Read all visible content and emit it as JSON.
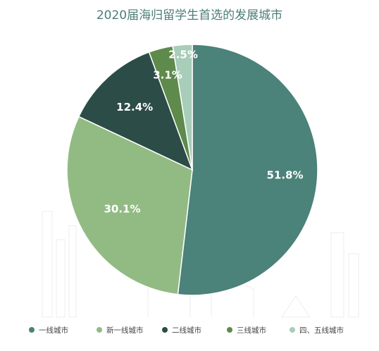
{
  "chart_data": {
    "type": "pie",
    "title": "2020届海归留学生首选的发展城市",
    "categories": [
      "一线城市",
      "新一线城市",
      "二线城市",
      "三线城市",
      "四、五线城市"
    ],
    "values": [
      51.8,
      30.1,
      12.4,
      3.1,
      2.5
    ],
    "labels": [
      "51.8%",
      "30.1%",
      "12.4%",
      "3.1%",
      "2.5%"
    ],
    "colors": [
      "#4b827a",
      "#92bb84",
      "#2c4c48",
      "#5e8a4c",
      "#a8cdb9"
    ],
    "legend_position": "bottom"
  }
}
